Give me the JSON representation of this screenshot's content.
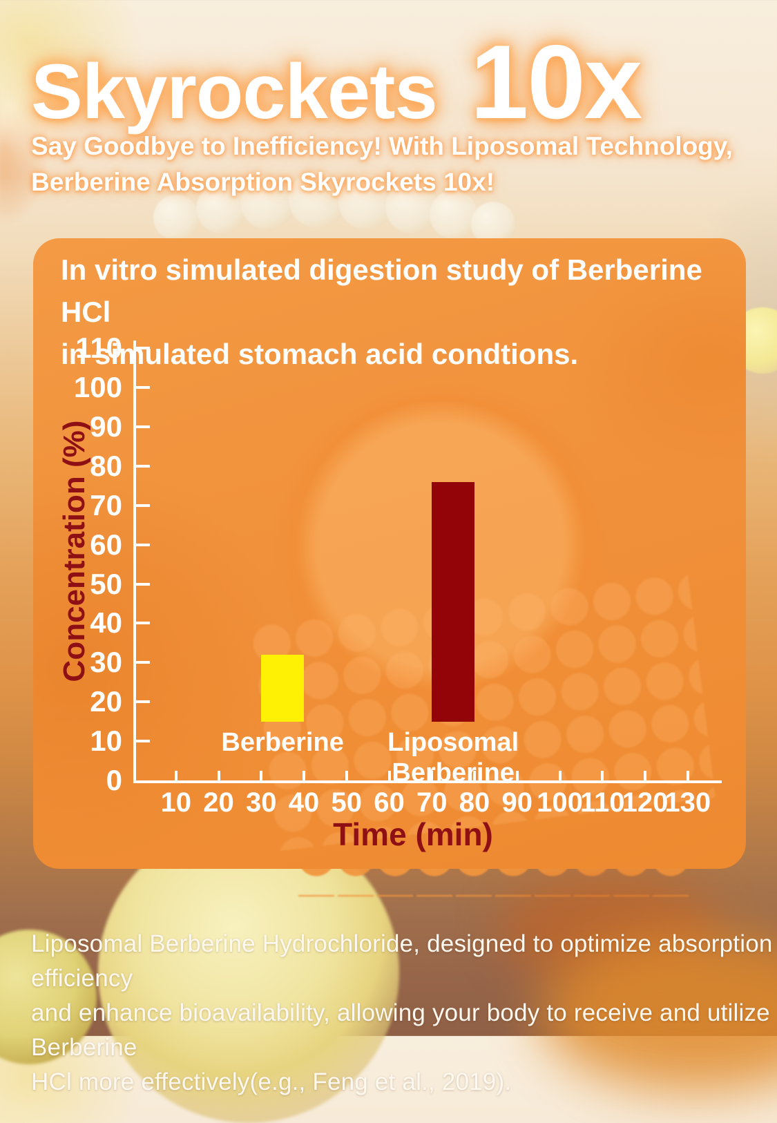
{
  "header": {
    "title_main": "Skyrockets",
    "title_multiplier": "10x",
    "subtitle_lines": [
      "Say Goodbye to Inefficiency! With Liposomal Technology,",
      "Berberine Absorption Skyrockets 10x!"
    ]
  },
  "panel": {
    "heading_lines": [
      "In vitro simulated digestion study of Berberine HCl",
      "in simulated stomach acid condtions."
    ]
  },
  "chart_data": {
    "type": "bar",
    "title": "In vitro simulated digestion study of Berberine HCl in simulated stomach acid condtions.",
    "categories": [
      "Berberine",
      "Liposomal Berberine"
    ],
    "values": [
      32,
      76
    ],
    "xlabel": "Time (min)",
    "ylabel": "Concentration (%)",
    "ylim": [
      0,
      110
    ],
    "xlim": [
      0,
      138
    ],
    "y_ticks": [
      0,
      10,
      20,
      30,
      40,
      50,
      60,
      70,
      80,
      90,
      100,
      110
    ],
    "x_ticks": [
      10,
      20,
      30,
      40,
      50,
      60,
      70,
      80,
      90,
      100,
      110,
      120,
      130
    ],
    "grid": false,
    "legend": "none",
    "bars": [
      {
        "name": "Berberine",
        "label_lines": [
          "Berberine"
        ],
        "x_range_min": [
          30,
          40
        ],
        "bottom": 15,
        "top": 32,
        "color": "#fff104"
      },
      {
        "name": "Liposomal Berberine",
        "label_lines": [
          "Liposomal",
          "Berberine"
        ],
        "x_range_min": [
          70,
          80
        ],
        "bottom": 15,
        "top": 76,
        "color": "#930409"
      }
    ]
  },
  "footer": {
    "lines": [
      "Liposomal Berberine Hydrochloride, designed to optimize absorption efficiency",
      "and enhance bioavailability, allowing your body to receive and utilize Berberine",
      "HCl more effectively(e.g., Feng et al., 2019)."
    ]
  },
  "colors": {
    "panel_orange": "#f1913c",
    "bar_yellow": "#fff104",
    "bar_dark_red": "#930409",
    "axis_title_red": "#8e1014",
    "axis_white": "#ffffff",
    "title_glow_orange": "#ff9633"
  }
}
